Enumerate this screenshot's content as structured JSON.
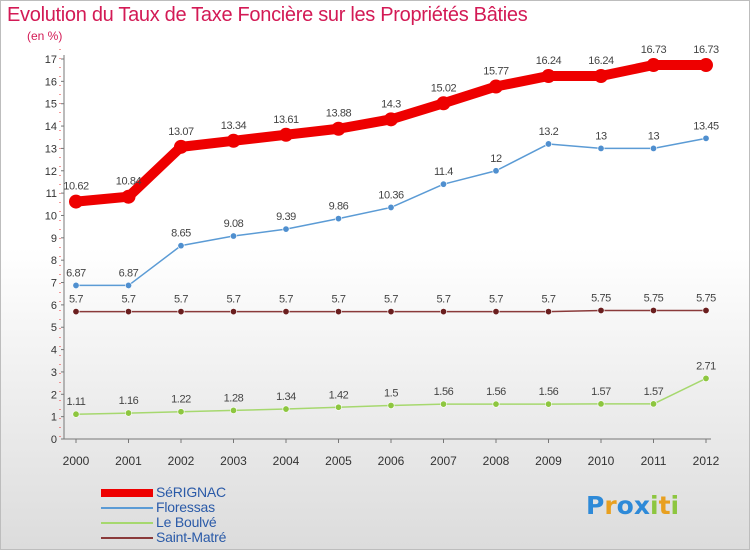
{
  "title": "Evolution du Taux de Taxe Foncière sur les Propriétés Bâties",
  "unit_label": "(en %)",
  "logo": {
    "text": "Proxiti",
    "letters": [
      "P",
      "r",
      "o",
      "x",
      "i",
      "t",
      "i"
    ],
    "colors": [
      "#2e8ad8",
      "#e8a020",
      "#2e8ad8",
      "#2e8ad8",
      "#8dc63f",
      "#e8a020",
      "#8dc63f"
    ]
  },
  "chart_data": {
    "type": "line",
    "categories": [
      "2000",
      "2001",
      "2002",
      "2003",
      "2004",
      "2005",
      "2006",
      "2007",
      "2008",
      "2009",
      "2010",
      "2011",
      "2012"
    ],
    "ylim": [
      0,
      17
    ],
    "yticks": [
      0,
      1,
      2,
      3,
      4,
      5,
      6,
      7,
      8,
      9,
      10,
      11,
      12,
      13,
      14,
      15,
      16,
      17
    ],
    "grid": false,
    "legend_position": "bottom-left",
    "series": [
      {
        "name": "SéRIGNAC",
        "color": "#ee0000",
        "marker_color": "#ee0000",
        "thick": true,
        "values": [
          10.62,
          10.84,
          13.07,
          13.34,
          13.61,
          13.88,
          14.3,
          15.02,
          15.77,
          16.24,
          16.24,
          16.73,
          16.73
        ],
        "labels": [
          "10.62",
          "10.84",
          "13.07",
          "13.34",
          "13.61",
          "13.88",
          "14.3",
          "15.02",
          "15.77",
          "16.24",
          "16.24",
          "16.73",
          "16.73"
        ]
      },
      {
        "name": "Floressas",
        "color": "#5b9bd5",
        "marker_color": "#4f8fcf",
        "values": [
          6.87,
          6.87,
          8.65,
          9.08,
          9.39,
          9.86,
          10.36,
          11.4,
          12,
          13.2,
          13,
          13,
          13.45
        ],
        "labels": [
          "6.87",
          "6.87",
          "8.65",
          "9.08",
          "9.39",
          "9.86",
          "10.36",
          "11.4",
          "12",
          "13.2",
          "13",
          "13",
          "13.45"
        ]
      },
      {
        "name": "Le Boulvé",
        "color": "#a6d86e",
        "marker_color": "#8dc63f",
        "values": [
          1.11,
          1.16,
          1.22,
          1.28,
          1.34,
          1.42,
          1.5,
          1.56,
          1.56,
          1.56,
          1.57,
          1.57,
          2.71
        ],
        "labels": [
          "1.11",
          "1.16",
          "1.22",
          "1.28",
          "1.34",
          "1.42",
          "1.5",
          "1.56",
          "1.56",
          "1.56",
          "1.57",
          "1.57",
          "2.71"
        ]
      },
      {
        "name": "Saint-Matré",
        "color": "#8a3a3a",
        "marker_color": "#6a1e1e",
        "values": [
          5.7,
          5.7,
          5.7,
          5.7,
          5.7,
          5.7,
          5.7,
          5.7,
          5.7,
          5.7,
          5.75,
          5.75,
          5.75
        ],
        "labels": [
          "5.7",
          "5.7",
          "5.7",
          "5.7",
          "5.7",
          "5.7",
          "5.7",
          "5.7",
          "5.7",
          "5.7",
          "5.75",
          "5.75",
          "5.75"
        ]
      }
    ]
  }
}
